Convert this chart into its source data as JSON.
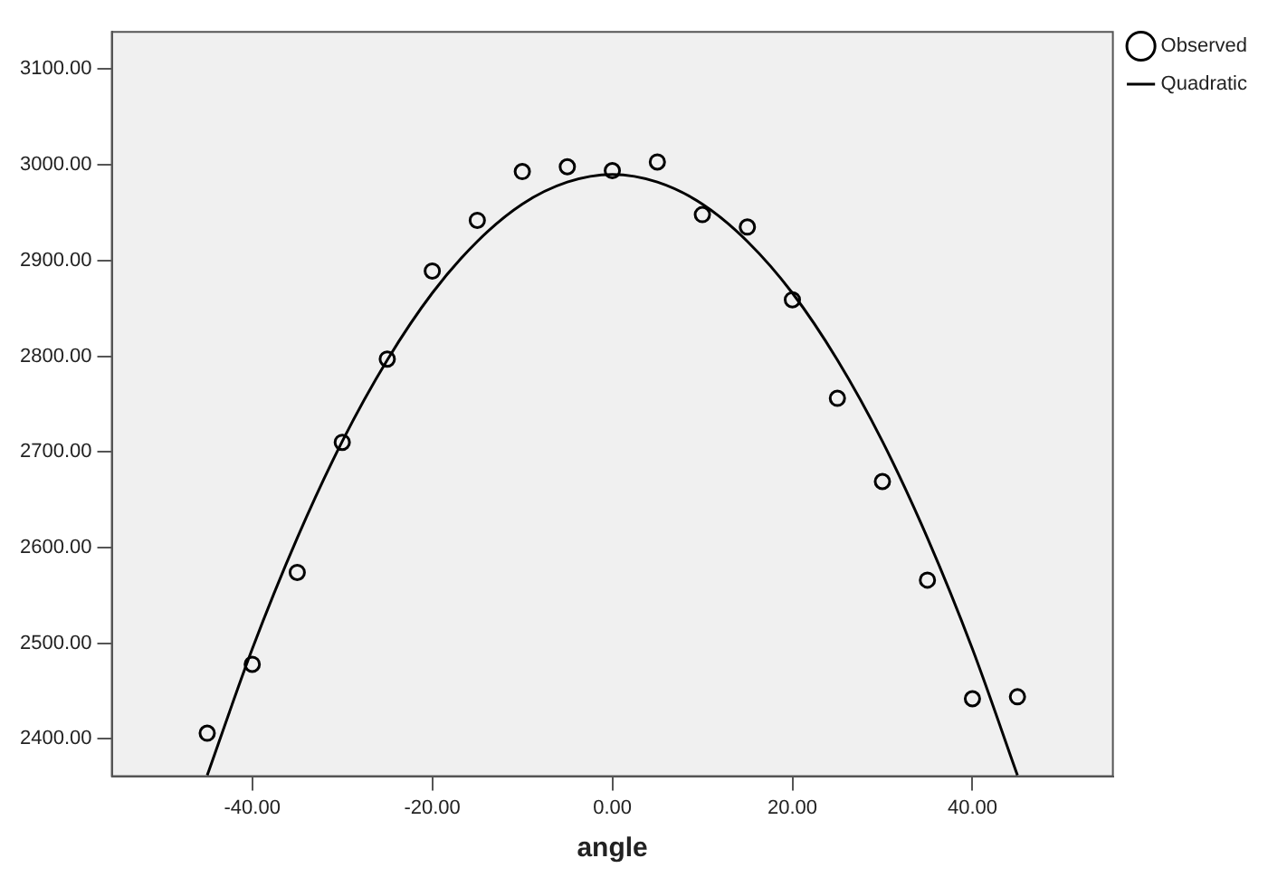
{
  "chart_data": {
    "type": "scatter",
    "xlabel": "angle",
    "xlim": [
      -55.6,
      55.6
    ],
    "ylim": [
      2361,
      3139
    ],
    "xticks": [
      {
        "value": -40,
        "label": "-40.00"
      },
      {
        "value": -20,
        "label": "-20.00"
      },
      {
        "value": 0,
        "label": "0.00"
      },
      {
        "value": 20,
        "label": "20.00"
      },
      {
        "value": 40,
        "label": "40.00"
      }
    ],
    "yticks": [
      {
        "value": 2400,
        "label": "2400.00"
      },
      {
        "value": 2500,
        "label": "2500.00"
      },
      {
        "value": 2600,
        "label": "2600.00"
      },
      {
        "value": 2700,
        "label": "2700.00"
      },
      {
        "value": 2800,
        "label": "2800.00"
      },
      {
        "value": 2900,
        "label": "2900.00"
      },
      {
        "value": 3000,
        "label": "3000.00"
      },
      {
        "value": 3100,
        "label": "3100.00"
      }
    ],
    "grid": false,
    "legend": "top right",
    "series": [
      {
        "name": "Observed",
        "type": "scatter",
        "marker": "circle",
        "color": "#000000",
        "x": [
          -45,
          -40,
          -35,
          -30,
          -25,
          -20,
          -15,
          -10,
          -5,
          0,
          5,
          10,
          15,
          20,
          25,
          30,
          35,
          40,
          45
        ],
        "values": [
          2406,
          2478,
          2574,
          2710,
          2797,
          2889,
          2942,
          2993,
          2998,
          2994,
          3003,
          2948,
          2935,
          2859,
          2756,
          2669,
          2566,
          2442,
          2444
        ]
      },
      {
        "name": "Quadratic",
        "type": "line",
        "marker": "none",
        "line_style": "solid",
        "color": "#000000",
        "x": [
          -45,
          -40,
          -35,
          -30,
          -25,
          -20,
          -15,
          -10,
          -5,
          0,
          5,
          10,
          15,
          20,
          25,
          30,
          35,
          40,
          45
        ],
        "values": [
          2362,
          2494,
          2610,
          2711,
          2796,
          2866,
          2920,
          2959,
          2982,
          2990,
          2982,
          2959,
          2920,
          2866,
          2796,
          2711,
          2610,
          2494,
          2362
        ]
      }
    ]
  }
}
